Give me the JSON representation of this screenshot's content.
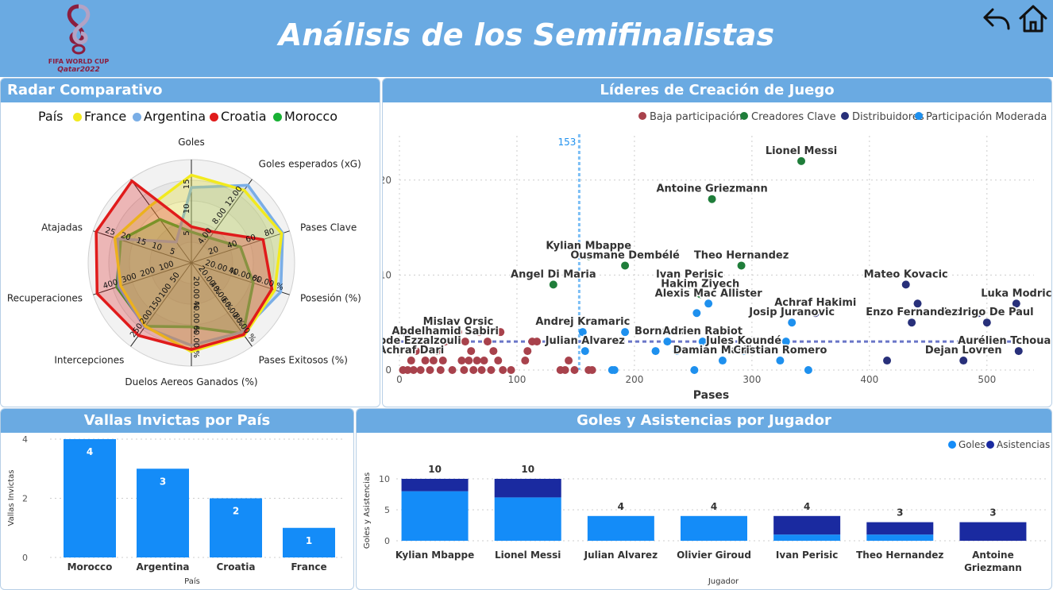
{
  "header": {
    "title": "Análisis de los Semifinalistas",
    "logo_text_1": "FIFA WORLD CUP",
    "logo_text_2": "Qatar2022"
  },
  "colors": {
    "header_blue": "#6aaae2",
    "france": "#f2ea1e",
    "argentina": "#7aaee6",
    "croatia": "#e01b1b",
    "morocco": "#18b134",
    "low": "#a8424c",
    "key": "#1f7d3a",
    "dist": "#28307a",
    "moderate": "#1e90ee",
    "bar_blue": "#148cf8",
    "bar_navy": "#1a2aa0"
  },
  "radar": {
    "title": "Radar Comparativo",
    "legend_title": "País",
    "series": [
      {
        "name": "France",
        "color": "#f2ea1e",
        "values": [
          0.85,
          0.87,
          0.92,
          0.85,
          0.87,
          0.86,
          0.76,
          0.72,
          0.78,
          0.68
        ]
      },
      {
        "name": "Argentina",
        "color": "#7aaee6",
        "values": [
          0.73,
          0.93,
          0.93,
          0.91,
          0.83,
          0.8,
          0.77,
          0.74,
          0.75,
          0.25
        ]
      },
      {
        "name": "Croatia",
        "color": "#e01b1b",
        "values": [
          0.35,
          0.37,
          0.73,
          0.82,
          0.86,
          0.84,
          0.87,
          0.96,
          0.97,
          0.98
        ]
      },
      {
        "name": "Morocco",
        "color": "#18b134",
        "values": [
          0.3,
          0.3,
          0.5,
          0.63,
          0.85,
          0.62,
          0.76,
          0.76,
          0.72,
          0.52
        ]
      }
    ],
    "axes": [
      {
        "label": "Goles",
        "ticks": [
          "5",
          "10",
          "15"
        ]
      },
      {
        "label": "Goles esperados (xG)",
        "ticks": [
          "4.00",
          "8.00",
          "12.00"
        ]
      },
      {
        "label": "Pases Clave",
        "ticks": [
          "20",
          "40",
          "60",
          "80"
        ]
      },
      {
        "label": "Posesión (%)",
        "ticks": [
          "20.00 %",
          "40.00 %",
          "60.00 %"
        ]
      },
      {
        "label": "Pases Exitosos (%)",
        "ticks": [
          "20.00 %",
          "40.00 %",
          "60.00 %",
          "80.00 %"
        ]
      },
      {
        "label": "Duelos Aereos Ganados (%)",
        "ticks": [
          "20.00 %",
          "40.00 %",
          "60.00 %"
        ]
      },
      {
        "label": "Intercepciones",
        "ticks": [
          "50",
          "100",
          "150",
          "200",
          "250"
        ]
      },
      {
        "label": "Recuperaciones",
        "ticks": [
          "100",
          "200",
          "300",
          "400"
        ]
      },
      {
        "label": "Atajadas",
        "ticks": [
          "5",
          "10",
          "15",
          "20",
          "25"
        ]
      },
      {
        "label": "",
        "ticks": []
      }
    ]
  },
  "scatter": {
    "title": "Líderes de Creación de Juego",
    "legend": [
      {
        "name": "Baja participación",
        "color": "#a8424c"
      },
      {
        "name": "Creadores Clave",
        "color": "#1f7d3a"
      },
      {
        "name": "Distribuidores",
        "color": "#28307a"
      },
      {
        "name": "Participación Moderada",
        "color": "#1e90ee"
      }
    ],
    "ref_x_label": "153",
    "ref_y_label": "3"
  },
  "goals_chart": {
    "title": "Goles y Asistencias por Jugador",
    "legend": [
      "Goles",
      "Asistencias"
    ]
  },
  "chart_data": [
    {
      "type": "scatter",
      "title": "Líderes de Creación de Juego",
      "xlabel": "Pases",
      "ylabel": "",
      "xlim": [
        0,
        540
      ],
      "ylim": [
        0,
        25
      ],
      "xticks": [
        0,
        100,
        200,
        300,
        400,
        500
      ],
      "yticks": [
        0,
        10,
        20
      ],
      "ref_lines": {
        "x": 153,
        "y": 3
      },
      "points": [
        {
          "x": 342,
          "y": 22,
          "cat": "key",
          "label": "Lionel Messi"
        },
        {
          "x": 266,
          "y": 18,
          "cat": "key",
          "label": "Antoine Griezmann"
        },
        {
          "x": 161,
          "y": 12,
          "cat": "key",
          "label": "Kylian Mbappe"
        },
        {
          "x": 192,
          "y": 11,
          "cat": "key",
          "label": "Ousmane Dembélé"
        },
        {
          "x": 291,
          "y": 11,
          "cat": "key",
          "label": "Theo Hernandez"
        },
        {
          "x": 247,
          "y": 9,
          "cat": "key",
          "label": "Ivan Perisic"
        },
        {
          "x": 131,
          "y": 9,
          "cat": "key",
          "label": "Angel Di Maria"
        },
        {
          "x": 256,
          "y": 8,
          "cat": "key",
          "label": "Hakim Ziyech"
        },
        {
          "x": 431,
          "y": 9,
          "cat": "dist",
          "label": "Mateo Kovacic"
        },
        {
          "x": 441,
          "y": 7,
          "cat": "dist",
          "label": ""
        },
        {
          "x": 525,
          "y": 7,
          "cat": "dist",
          "label": "Luka Modric"
        },
        {
          "x": 493,
          "y": 6,
          "cat": "dist",
          "label": ""
        },
        {
          "x": 500,
          "y": 5,
          "cat": "dist",
          "label": "Rodrigo De Paul"
        },
        {
          "x": 436,
          "y": 5,
          "cat": "dist",
          "label": "Enzo Fernandez"
        },
        {
          "x": 354,
          "y": 6,
          "cat": "dist",
          "label": "Achraf Hakimi"
        },
        {
          "x": 527,
          "y": 2,
          "cat": "dist",
          "label": "Aurélien Tchouameni"
        },
        {
          "x": 415,
          "y": 1,
          "cat": "dist",
          "label": ""
        },
        {
          "x": 480,
          "y": 1,
          "cat": "dist",
          "label": "Dejan Lovren"
        },
        {
          "x": 263,
          "y": 7,
          "cat": "moderate",
          "label": "Alexis Mac Allister"
        },
        {
          "x": 253,
          "y": 6,
          "cat": "moderate",
          "label": ""
        },
        {
          "x": 156,
          "y": 4,
          "cat": "moderate",
          "label": "Andrej Kramaric"
        },
        {
          "x": 192,
          "y": 4,
          "cat": "moderate",
          "label": ""
        },
        {
          "x": 334,
          "y": 5,
          "cat": "moderate",
          "label": "Josip Juranovic"
        },
        {
          "x": 228,
          "y": 3,
          "cat": "moderate",
          "label": "Borna Sosa"
        },
        {
          "x": 258,
          "y": 3,
          "cat": "moderate",
          "label": "Adrien Rabiot"
        },
        {
          "x": 329,
          "y": 3,
          "cat": "moderate",
          "label": ""
        },
        {
          "x": 158,
          "y": 2,
          "cat": "moderate",
          "label": "Julian Alvarez"
        },
        {
          "x": 218,
          "y": 2,
          "cat": "moderate",
          "label": ""
        },
        {
          "x": 236,
          "y": 2,
          "cat": "moderate",
          "label": ""
        },
        {
          "x": 293,
          "y": 2,
          "cat": "moderate",
          "label": "Jules Koundé"
        },
        {
          "x": 275,
          "y": 1,
          "cat": "moderate",
          "label": "Damian Martinez"
        },
        {
          "x": 324,
          "y": 1,
          "cat": "moderate",
          "label": "Cristian Romero"
        },
        {
          "x": 181,
          "y": 0,
          "cat": "moderate",
          "label": ""
        },
        {
          "x": 183,
          "y": 0,
          "cat": "moderate",
          "label": ""
        },
        {
          "x": 251,
          "y": 0,
          "cat": "moderate",
          "label": ""
        },
        {
          "x": 348,
          "y": 0,
          "cat": "moderate",
          "label": ""
        },
        {
          "x": 50,
          "y": 4,
          "cat": "low",
          "label": "Mislav Orsic"
        },
        {
          "x": 68,
          "y": 4,
          "cat": "low",
          "label": ""
        },
        {
          "x": 86,
          "y": 4,
          "cat": "low",
          "label": ""
        },
        {
          "x": 39,
          "y": 3,
          "cat": "low",
          "label": "Abdelhamid Sabiri"
        },
        {
          "x": 56,
          "y": 3,
          "cat": "low",
          "label": ""
        },
        {
          "x": 75,
          "y": 3,
          "cat": "low",
          "label": ""
        },
        {
          "x": 113,
          "y": 3,
          "cat": "low",
          "label": ""
        },
        {
          "x": 117,
          "y": 3,
          "cat": "low",
          "label": ""
        },
        {
          "x": 14,
          "y": 2,
          "cat": "low",
          "label": "Abde Ezzalzouli"
        },
        {
          "x": 32,
          "y": 2,
          "cat": "low",
          "label": ""
        },
        {
          "x": 61,
          "y": 2,
          "cat": "low",
          "label": ""
        },
        {
          "x": 80,
          "y": 2,
          "cat": "low",
          "label": ""
        },
        {
          "x": 109,
          "y": 2,
          "cat": "low",
          "label": ""
        },
        {
          "x": 10,
          "y": 1,
          "cat": "low",
          "label": "Achraf Dari"
        },
        {
          "x": 22,
          "y": 1,
          "cat": "low",
          "label": ""
        },
        {
          "x": 29,
          "y": 1,
          "cat": "low",
          "label": ""
        },
        {
          "x": 37,
          "y": 1,
          "cat": "low",
          "label": ""
        },
        {
          "x": 53,
          "y": 1,
          "cat": "low",
          "label": ""
        },
        {
          "x": 59,
          "y": 1,
          "cat": "low",
          "label": ""
        },
        {
          "x": 66,
          "y": 1,
          "cat": "low",
          "label": ""
        },
        {
          "x": 72,
          "y": 1,
          "cat": "low",
          "label": ""
        },
        {
          "x": 84,
          "y": 1,
          "cat": "low",
          "label": ""
        },
        {
          "x": 107,
          "y": 1,
          "cat": "low",
          "label": ""
        },
        {
          "x": 144,
          "y": 1,
          "cat": "low",
          "label": ""
        },
        {
          "x": 3,
          "y": 0,
          "cat": "low",
          "label": ""
        },
        {
          "x": 7,
          "y": 0,
          "cat": "low",
          "label": ""
        },
        {
          "x": 12,
          "y": 0,
          "cat": "low",
          "label": ""
        },
        {
          "x": 18,
          "y": 0,
          "cat": "low",
          "label": ""
        },
        {
          "x": 26,
          "y": 0,
          "cat": "low",
          "label": ""
        },
        {
          "x": 35,
          "y": 0,
          "cat": "low",
          "label": ""
        },
        {
          "x": 45,
          "y": 0,
          "cat": "low",
          "label": ""
        },
        {
          "x": 55,
          "y": 0,
          "cat": "low",
          "label": ""
        },
        {
          "x": 63,
          "y": 0,
          "cat": "low",
          "label": ""
        },
        {
          "x": 70,
          "y": 0,
          "cat": "low",
          "label": ""
        },
        {
          "x": 78,
          "y": 0,
          "cat": "low",
          "label": ""
        },
        {
          "x": 88,
          "y": 0,
          "cat": "low",
          "label": ""
        },
        {
          "x": 95,
          "y": 0,
          "cat": "low",
          "label": ""
        },
        {
          "x": 137,
          "y": 0,
          "cat": "low",
          "label": ""
        },
        {
          "x": 141,
          "y": 0,
          "cat": "low",
          "label": ""
        },
        {
          "x": 149,
          "y": 0,
          "cat": "low",
          "label": ""
        },
        {
          "x": 161,
          "y": 0,
          "cat": "low",
          "label": ""
        },
        {
          "x": 164,
          "y": 0,
          "cat": "low",
          "label": ""
        }
      ]
    },
    {
      "type": "bar",
      "title": "Vallas Invictas por País",
      "categories": [
        "Morocco",
        "Argentina",
        "Croatia",
        "France"
      ],
      "values": [
        4,
        3,
        2,
        1
      ],
      "xlabel": "País",
      "ylabel": "Vallas Invictas",
      "ylim": [
        0,
        4
      ],
      "yticks": [
        0,
        2,
        4
      ]
    },
    {
      "type": "bar",
      "stacked": true,
      "title": "Goles y Asistencias por Jugador",
      "categories": [
        "Kylian Mbappe",
        "Lionel Messi",
        "Julian Alvarez",
        "Olivier Giroud",
        "Ivan Perisic",
        "Theo Hernandez",
        "Antoine Griezmann"
      ],
      "series": [
        {
          "name": "Goles",
          "values": [
            8,
            7,
            4,
            4,
            1,
            1,
            0
          ]
        },
        {
          "name": "Asistencias",
          "values": [
            2,
            3,
            0,
            0,
            3,
            2,
            3
          ]
        }
      ],
      "totals": [
        10,
        10,
        4,
        4,
        4,
        3,
        3
      ],
      "xlabel": "Jugador",
      "ylabel": "Goles y Asistencias",
      "ylim": [
        0,
        10
      ],
      "yticks": [
        0,
        5,
        10
      ]
    }
  ]
}
